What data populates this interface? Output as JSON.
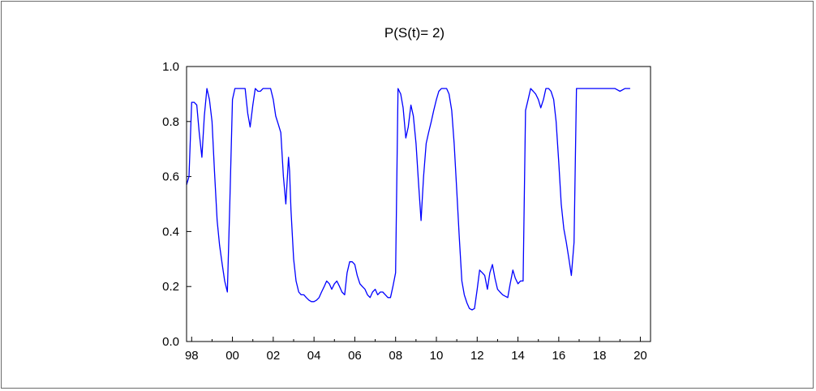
{
  "chart_data": {
    "type": "line",
    "title": "P(S(t)= 2)",
    "xlabel": "",
    "ylabel": "",
    "xlim": [
      1997.75,
      2020.5
    ],
    "ylim": [
      0.0,
      1.0
    ],
    "grid": false,
    "legend": "none",
    "colors": {
      "line": "#0000ff",
      "axis": "#000000"
    },
    "x_ticks": [
      {
        "value": 1998,
        "label": "98"
      },
      {
        "value": 2000,
        "label": "00"
      },
      {
        "value": 2002,
        "label": "02"
      },
      {
        "value": 2004,
        "label": "04"
      },
      {
        "value": 2006,
        "label": "06"
      },
      {
        "value": 2008,
        "label": "08"
      },
      {
        "value": 2010,
        "label": "10"
      },
      {
        "value": 2012,
        "label": "12"
      },
      {
        "value": 2014,
        "label": "14"
      },
      {
        "value": 2016,
        "label": "16"
      },
      {
        "value": 2018,
        "label": "18"
      },
      {
        "value": 2020,
        "label": "20"
      }
    ],
    "y_ticks": [
      {
        "value": 0.0,
        "label": "0.0"
      },
      {
        "value": 0.2,
        "label": "0.2"
      },
      {
        "value": 0.4,
        "label": "0.4"
      },
      {
        "value": 0.6,
        "label": "0.6"
      },
      {
        "value": 0.8,
        "label": "0.8"
      },
      {
        "value": 1.0,
        "label": "1.0"
      }
    ],
    "series": [
      {
        "points": [
          [
            1997.75,
            0.57
          ],
          [
            1997.87,
            0.6
          ],
          [
            1998.0,
            0.87
          ],
          [
            1998.12,
            0.87
          ],
          [
            1998.25,
            0.86
          ],
          [
            1998.37,
            0.76
          ],
          [
            1998.5,
            0.67
          ],
          [
            1998.62,
            0.82
          ],
          [
            1998.75,
            0.92
          ],
          [
            1998.87,
            0.88
          ],
          [
            1999.0,
            0.8
          ],
          [
            1999.12,
            0.62
          ],
          [
            1999.25,
            0.44
          ],
          [
            1999.37,
            0.35
          ],
          [
            1999.5,
            0.28
          ],
          [
            1999.62,
            0.22
          ],
          [
            1999.75,
            0.18
          ],
          [
            1999.87,
            0.5
          ],
          [
            2000.0,
            0.88
          ],
          [
            2000.12,
            0.92
          ],
          [
            2000.25,
            0.92
          ],
          [
            2000.5,
            0.92
          ],
          [
            2000.62,
            0.92
          ],
          [
            2000.75,
            0.83
          ],
          [
            2000.87,
            0.78
          ],
          [
            2001.0,
            0.86
          ],
          [
            2001.12,
            0.92
          ],
          [
            2001.25,
            0.91
          ],
          [
            2001.37,
            0.91
          ],
          [
            2001.5,
            0.92
          ],
          [
            2001.75,
            0.92
          ],
          [
            2001.87,
            0.92
          ],
          [
            2002.0,
            0.88
          ],
          [
            2002.12,
            0.82
          ],
          [
            2002.25,
            0.79
          ],
          [
            2002.37,
            0.76
          ],
          [
            2002.5,
            0.6
          ],
          [
            2002.62,
            0.5
          ],
          [
            2002.75,
            0.67
          ],
          [
            2002.8,
            0.62
          ],
          [
            2002.87,
            0.48
          ],
          [
            2003.0,
            0.3
          ],
          [
            2003.12,
            0.22
          ],
          [
            2003.25,
            0.18
          ],
          [
            2003.37,
            0.17
          ],
          [
            2003.5,
            0.17
          ],
          [
            2003.62,
            0.16
          ],
          [
            2003.75,
            0.15
          ],
          [
            2003.87,
            0.145
          ],
          [
            2004.0,
            0.145
          ],
          [
            2004.12,
            0.15
          ],
          [
            2004.25,
            0.16
          ],
          [
            2004.37,
            0.18
          ],
          [
            2004.5,
            0.2
          ],
          [
            2004.62,
            0.22
          ],
          [
            2004.75,
            0.21
          ],
          [
            2004.87,
            0.19
          ],
          [
            2005.0,
            0.21
          ],
          [
            2005.12,
            0.22
          ],
          [
            2005.25,
            0.2
          ],
          [
            2005.37,
            0.18
          ],
          [
            2005.5,
            0.17
          ],
          [
            2005.62,
            0.25
          ],
          [
            2005.75,
            0.29
          ],
          [
            2005.87,
            0.29
          ],
          [
            2006.0,
            0.28
          ],
          [
            2006.12,
            0.24
          ],
          [
            2006.25,
            0.21
          ],
          [
            2006.37,
            0.2
          ],
          [
            2006.5,
            0.19
          ],
          [
            2006.62,
            0.17
          ],
          [
            2006.75,
            0.16
          ],
          [
            2006.87,
            0.18
          ],
          [
            2007.0,
            0.19
          ],
          [
            2007.12,
            0.17
          ],
          [
            2007.25,
            0.18
          ],
          [
            2007.37,
            0.18
          ],
          [
            2007.5,
            0.17
          ],
          [
            2007.62,
            0.16
          ],
          [
            2007.75,
            0.16
          ],
          [
            2007.87,
            0.2
          ],
          [
            2008.0,
            0.25
          ],
          [
            2008.12,
            0.92
          ],
          [
            2008.25,
            0.9
          ],
          [
            2008.37,
            0.85
          ],
          [
            2008.5,
            0.74
          ],
          [
            2008.62,
            0.78
          ],
          [
            2008.75,
            0.86
          ],
          [
            2008.87,
            0.82
          ],
          [
            2009.0,
            0.72
          ],
          [
            2009.12,
            0.58
          ],
          [
            2009.25,
            0.44
          ],
          [
            2009.37,
            0.6
          ],
          [
            2009.5,
            0.72
          ],
          [
            2009.62,
            0.76
          ],
          [
            2009.75,
            0.8
          ],
          [
            2009.87,
            0.84
          ],
          [
            2010.0,
            0.88
          ],
          [
            2010.12,
            0.91
          ],
          [
            2010.25,
            0.92
          ],
          [
            2010.5,
            0.92
          ],
          [
            2010.62,
            0.9
          ],
          [
            2010.75,
            0.84
          ],
          [
            2010.87,
            0.72
          ],
          [
            2011.0,
            0.55
          ],
          [
            2011.12,
            0.38
          ],
          [
            2011.25,
            0.22
          ],
          [
            2011.37,
            0.17
          ],
          [
            2011.5,
            0.14
          ],
          [
            2011.62,
            0.12
          ],
          [
            2011.75,
            0.115
          ],
          [
            2011.87,
            0.12
          ],
          [
            2012.0,
            0.19
          ],
          [
            2012.12,
            0.26
          ],
          [
            2012.25,
            0.25
          ],
          [
            2012.37,
            0.24
          ],
          [
            2012.5,
            0.19
          ],
          [
            2012.62,
            0.25
          ],
          [
            2012.75,
            0.28
          ],
          [
            2012.87,
            0.23
          ],
          [
            2013.0,
            0.19
          ],
          [
            2013.12,
            0.18
          ],
          [
            2013.25,
            0.17
          ],
          [
            2013.37,
            0.165
          ],
          [
            2013.5,
            0.16
          ],
          [
            2013.62,
            0.21
          ],
          [
            2013.75,
            0.26
          ],
          [
            2013.87,
            0.23
          ],
          [
            2014.0,
            0.21
          ],
          [
            2014.12,
            0.22
          ],
          [
            2014.25,
            0.22
          ],
          [
            2014.37,
            0.84
          ],
          [
            2014.5,
            0.88
          ],
          [
            2014.62,
            0.92
          ],
          [
            2014.75,
            0.91
          ],
          [
            2014.87,
            0.9
          ],
          [
            2015.0,
            0.88
          ],
          [
            2015.12,
            0.85
          ],
          [
            2015.25,
            0.88
          ],
          [
            2015.37,
            0.92
          ],
          [
            2015.5,
            0.92
          ],
          [
            2015.62,
            0.91
          ],
          [
            2015.75,
            0.88
          ],
          [
            2015.87,
            0.8
          ],
          [
            2016.0,
            0.65
          ],
          [
            2016.12,
            0.5
          ],
          [
            2016.25,
            0.41
          ],
          [
            2016.37,
            0.36
          ],
          [
            2016.5,
            0.3
          ],
          [
            2016.62,
            0.24
          ],
          [
            2016.75,
            0.36
          ],
          [
            2016.87,
            0.92
          ],
          [
            2017.0,
            0.92
          ],
          [
            2017.5,
            0.92
          ],
          [
            2018.0,
            0.92
          ],
          [
            2018.5,
            0.92
          ],
          [
            2018.75,
            0.92
          ],
          [
            2019.0,
            0.91
          ],
          [
            2019.25,
            0.92
          ],
          [
            2019.5,
            0.92
          ]
        ]
      }
    ]
  }
}
